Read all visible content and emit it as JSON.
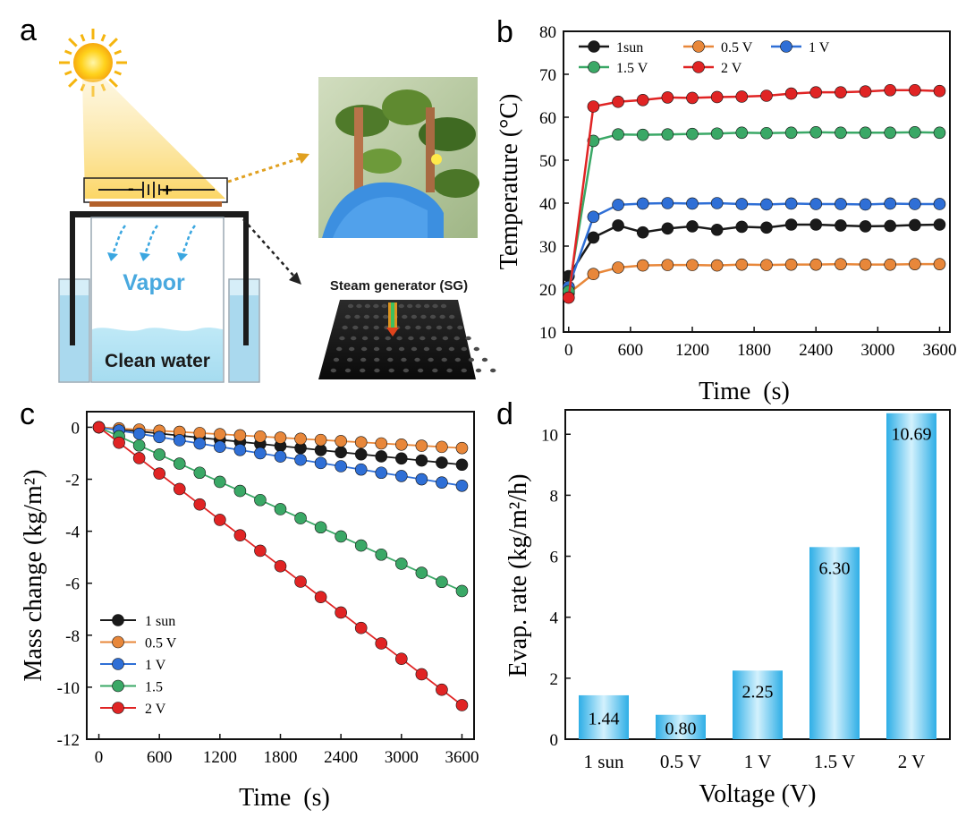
{
  "colors": {
    "black": "#1a1a1a",
    "orange": "#e8873a",
    "blue": "#2f6fd6",
    "green": "#3aa866",
    "red": "#e02424",
    "bar_light": "#c9ecfb",
    "bar_dark": "#33b4e8"
  },
  "panel_labels": {
    "a": "a",
    "b": "b",
    "c": "c",
    "d": "d"
  },
  "schematic": {
    "battery_minus": "-",
    "battery_plus": "+",
    "vapor_label": "Vapor",
    "water_label": "Clean water",
    "sg_label": "Steam generator (SG)"
  },
  "chart_data": [
    {
      "id": "b",
      "type": "line",
      "xlabel": "Time  (s)",
      "ylabel": "Temperature (°C)",
      "xlim": [
        -50,
        3700
      ],
      "ylim": [
        10,
        80
      ],
      "xticks": [
        0,
        600,
        1200,
        1800,
        2400,
        3000,
        3600
      ],
      "yticks": [
        10,
        20,
        30,
        40,
        50,
        60,
        70,
        80
      ],
      "legend_position": "top-left",
      "x": [
        0,
        240,
        480,
        720,
        960,
        1200,
        1440,
        1680,
        1920,
        2160,
        2400,
        2640,
        2880,
        3120,
        3360,
        3600
      ],
      "series": [
        {
          "name": "1sun",
          "color_key": "black",
          "values": [
            23,
            32,
            34.8,
            33.2,
            34.1,
            34.6,
            33.8,
            34.5,
            34.3,
            35,
            35,
            34.8,
            34.6,
            34.7,
            34.9,
            35
          ]
        },
        {
          "name": "0.5 V",
          "color_key": "orange",
          "values": [
            19,
            23.5,
            25,
            25.5,
            25.6,
            25.6,
            25.5,
            25.7,
            25.6,
            25.7,
            25.7,
            25.8,
            25.7,
            25.7,
            25.8,
            25.8
          ]
        },
        {
          "name": "1 V",
          "color_key": "blue",
          "values": [
            20.5,
            36.8,
            39.6,
            39.9,
            40,
            39.9,
            40,
            39.8,
            39.7,
            39.9,
            39.8,
            39.8,
            39.7,
            39.9,
            39.8,
            39.8
          ]
        },
        {
          "name": "1.5 V",
          "color_key": "green",
          "values": [
            19.5,
            54.5,
            56,
            55.9,
            56,
            56.1,
            56.2,
            56.4,
            56.3,
            56.4,
            56.5,
            56.4,
            56.4,
            56.4,
            56.5,
            56.4
          ]
        },
        {
          "name": "2 V",
          "color_key": "red",
          "values": [
            18,
            62.5,
            63.6,
            64,
            64.6,
            64.5,
            64.7,
            64.8,
            65,
            65.5,
            65.8,
            65.8,
            66,
            66.3,
            66.3,
            66.1
          ]
        }
      ]
    },
    {
      "id": "c",
      "type": "line",
      "xlabel": "Time  (s)",
      "ylabel": "Mass change (kg/m²)",
      "xlim": [
        -120,
        3720
      ],
      "ylim": [
        -12,
        0.6
      ],
      "xticks": [
        0,
        600,
        1200,
        1800,
        2400,
        3000,
        3600
      ],
      "yticks": [
        0,
        -2,
        -4,
        -6,
        -8,
        -10,
        -12
      ],
      "legend_position": "bottom-left",
      "x": [
        0,
        200,
        400,
        600,
        800,
        1000,
        1200,
        1400,
        1600,
        1800,
        2000,
        2200,
        2400,
        2600,
        2800,
        3000,
        3200,
        3400,
        3600
      ],
      "series": [
        {
          "name": "1 sun",
          "color_key": "black",
          "slope": 1.44
        },
        {
          "name": "0.5 V",
          "color_key": "orange",
          "slope": 0.8
        },
        {
          "name": "1 V",
          "color_key": "blue",
          "slope": 2.25
        },
        {
          "name": "1.5",
          "color_key": "green",
          "slope": 6.3
        },
        {
          "name": "2 V",
          "color_key": "red",
          "slope": 10.69
        }
      ]
    },
    {
      "id": "d",
      "type": "bar",
      "xlabel": "Voltage (V)",
      "ylabel": "Evap. rate (kg/m²/h)",
      "ylim": [
        0,
        10.8
      ],
      "yticks": [
        0,
        2,
        4,
        6,
        8,
        10
      ],
      "categories": [
        "1 sun",
        "0.5 V",
        "1 V",
        "1.5 V",
        "2 V"
      ],
      "values": [
        1.44,
        0.8,
        2.25,
        6.3,
        10.69
      ],
      "value_labels": [
        "1.44",
        "0.80",
        "2.25",
        "6.30",
        "10.69"
      ]
    }
  ]
}
